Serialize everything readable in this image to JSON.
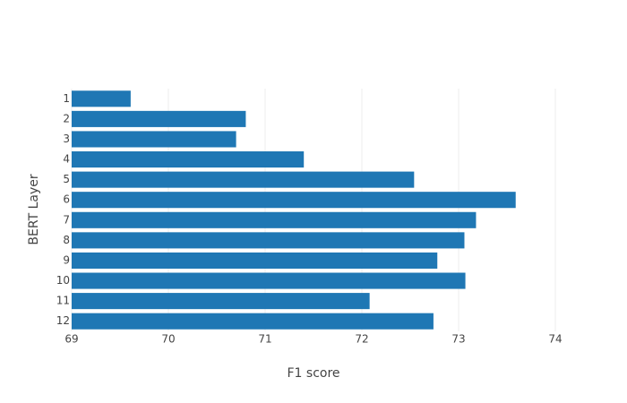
{
  "chart_data": {
    "type": "bar",
    "orientation": "horizontal",
    "xlabel": "F1 score",
    "ylabel": "BERT Layer",
    "categories": [
      "1",
      "2",
      "3",
      "4",
      "5",
      "6",
      "7",
      "8",
      "9",
      "10",
      "11",
      "12"
    ],
    "values": [
      69.61,
      70.8,
      70.7,
      71.4,
      72.54,
      73.59,
      73.18,
      73.06,
      72.78,
      73.07,
      72.08,
      72.74
    ],
    "color": "#1f77b4",
    "xlim": [
      69,
      74
    ],
    "xticks": [
      69,
      70,
      71,
      72,
      73,
      74
    ],
    "grid": true
  }
}
